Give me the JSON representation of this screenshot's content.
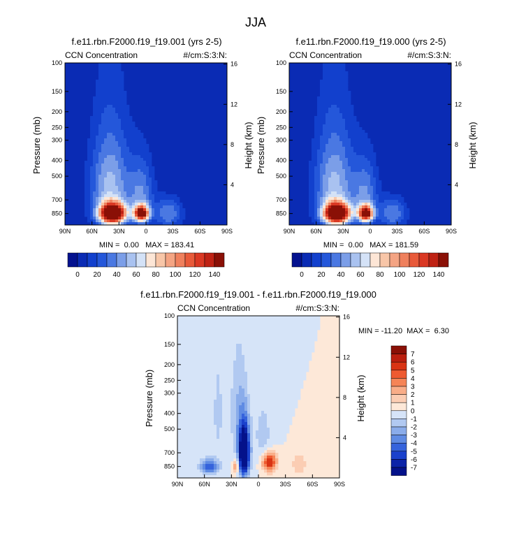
{
  "figure": {
    "title": "JJA"
  },
  "colorbar_levels": [
    "0",
    "20",
    "40",
    "60",
    "80",
    "100",
    "120",
    "140"
  ],
  "diff_colorbar_levels": [
    "7",
    "6",
    "5",
    "4",
    "3",
    "2",
    "1",
    "0",
    "-1",
    "-2",
    "-3",
    "-4",
    "-5",
    "-6",
    "-7"
  ],
  "colors": {
    "seq": [
      "#04128f",
      "#0a2bb4",
      "#1240cd",
      "#2457da",
      "#4a78e2",
      "#7b9ee8",
      "#a9c2f0",
      "#d4e2f7",
      "#fde6d6",
      "#f8c6a8",
      "#f4a483",
      "#ef805d",
      "#e85a3a",
      "#da3823",
      "#bf2214",
      "#8a1006"
    ],
    "diff": [
      "#8a1006",
      "#bb1f0f",
      "#d93414",
      "#ee5a30",
      "#f58456",
      "#f9ad88",
      "#fbcdb3",
      "#fde8d8",
      "#d6e4f8",
      "#b1c9f1",
      "#8aacea",
      "#5f8be3",
      "#3563dc",
      "#1a41cc",
      "#0c24a8",
      "#04128a"
    ],
    "frame_bg": "#0a2bb4",
    "diff_bg": "#fde8d8"
  },
  "panels": [
    {
      "title": "f.e11.rbn.F2000.f19_f19.001 (yrs 2-5)",
      "left_label": "CCN Concentration",
      "right_label": "#/cm:S:3:N:",
      "ylabel": "Pressure (mb)",
      "y2label": "Height (km)",
      "stats": "MIN =  0.00   MAX = 183.41"
    },
    {
      "title": "f.e11.rbn.F2000.f19_f19.000 (yrs 2-5)",
      "left_label": "CCN Concentration",
      "right_label": "#/cm:S:3:N:",
      "ylabel": "Pressure (mb)",
      "y2label": "Height (km)",
      "stats": "MIN =  0.00   MAX = 181.59"
    },
    {
      "title": "f.e11.rbn.F2000.f19_f19.001 - f.e11.rbn.F2000.f19_f19.000",
      "left_label": "CCN Concentration",
      "right_label": "#/cm:S:3:N:",
      "ylabel": "Pressure (mb)",
      "y2label": "Height (km)",
      "stats": "MIN = -11.20  MAX =  6.30"
    }
  ],
  "chart_data": [
    {
      "type": "heatmap",
      "title": "f.e11.rbn.F2000.f19_f19.001 (yrs 2-5)",
      "field": "CCN Concentration",
      "units": "#/cm:S:3:N:",
      "xlabel": "",
      "ylabel": "Pressure (mb)",
      "y2label": "Height (km)",
      "x_ticks": [
        "90N",
        "60N",
        "30N",
        "0",
        "30S",
        "60S",
        "90S"
      ],
      "y_ticks": [
        "100",
        "150",
        "200",
        "250",
        "300",
        "400",
        "500",
        "700",
        "850"
      ],
      "y2_ticks": [
        "16",
        "12",
        "8",
        "4"
      ],
      "xlim": [
        90,
        -90
      ],
      "ylim": [
        1000,
        100
      ],
      "min": 0.0,
      "max": 183.41,
      "contour_levels": [
        0,
        10,
        20,
        30,
        40,
        50,
        60,
        70,
        80,
        90,
        100,
        110,
        120,
        130,
        140
      ],
      "features": [
        {
          "lat": 37,
          "pressure": 850,
          "peak": 183.41,
          "lat_halfwidth": 14,
          "depth_mb": 120
        },
        {
          "lat": 5,
          "pressure": 850,
          "peak": 150,
          "lat_halfwidth": 8,
          "depth_mb": 95
        },
        {
          "lat": 40,
          "pressure": 600,
          "peak": 55,
          "lat_halfwidth": 22,
          "depth_mb": 420
        },
        {
          "lat": 5,
          "pressure": 650,
          "peak": 38,
          "lat_halfwidth": 14,
          "depth_mb": 300
        },
        {
          "lat": -25,
          "pressure": 850,
          "peak": 40,
          "lat_halfwidth": 15,
          "depth_mb": 180
        }
      ]
    },
    {
      "type": "heatmap",
      "title": "f.e11.rbn.F2000.f19_f19.000 (yrs 2-5)",
      "field": "CCN Concentration",
      "units": "#/cm:S:3:N:",
      "xlabel": "",
      "ylabel": "Pressure (mb)",
      "y2label": "Height (km)",
      "x_ticks": [
        "90N",
        "60N",
        "30N",
        "0",
        "30S",
        "60S",
        "90S"
      ],
      "y_ticks": [
        "100",
        "150",
        "200",
        "250",
        "300",
        "400",
        "500",
        "700",
        "850"
      ],
      "y2_ticks": [
        "16",
        "12",
        "8",
        "4"
      ],
      "xlim": [
        90,
        -90
      ],
      "ylim": [
        1000,
        100
      ],
      "min": 0.0,
      "max": 181.59,
      "contour_levels": [
        0,
        10,
        20,
        30,
        40,
        50,
        60,
        70,
        80,
        90,
        100,
        110,
        120,
        130,
        140
      ],
      "features": [
        {
          "lat": 37,
          "pressure": 850,
          "peak": 181.59,
          "lat_halfwidth": 14,
          "depth_mb": 120
        },
        {
          "lat": 5,
          "pressure": 850,
          "peak": 148,
          "lat_halfwidth": 8,
          "depth_mb": 95
        },
        {
          "lat": 40,
          "pressure": 600,
          "peak": 55,
          "lat_halfwidth": 22,
          "depth_mb": 420
        },
        {
          "lat": 5,
          "pressure": 650,
          "peak": 38,
          "lat_halfwidth": 14,
          "depth_mb": 300
        },
        {
          "lat": -25,
          "pressure": 850,
          "peak": 40,
          "lat_halfwidth": 15,
          "depth_mb": 180
        }
      ]
    },
    {
      "type": "heatmap",
      "title": "f.e11.rbn.F2000.f19_f19.001 - f.e11.rbn.F2000.f19_f19.000",
      "field": "CCN Concentration",
      "units": "#/cm:S:3:N:",
      "xlabel": "",
      "ylabel": "Pressure (mb)",
      "y2label": "Height (km)",
      "x_ticks": [
        "90N",
        "60N",
        "30N",
        "0",
        "30S",
        "60S",
        "90S"
      ],
      "y_ticks": [
        "100",
        "150",
        "200",
        "250",
        "300",
        "400",
        "500",
        "700",
        "850"
      ],
      "y2_ticks": [
        "16",
        "12",
        "8",
        "4"
      ],
      "xlim": [
        90,
        -90
      ],
      "ylim": [
        1000,
        100
      ],
      "min": -11.2,
      "max": 6.3,
      "contour_levels": [
        -7,
        -6,
        -5,
        -4,
        -3,
        -2,
        -1,
        0,
        1,
        2,
        3,
        4,
        5,
        6,
        7
      ],
      "features": [
        {
          "lat": 16,
          "pressure": 700,
          "peak": -11.2,
          "lat_halfwidth": 6,
          "depth_mb": 250
        },
        {
          "lat": 22,
          "pressure": 400,
          "peak": -2,
          "lat_halfwidth": 10,
          "depth_mb": 300
        },
        {
          "lat": 45,
          "pressure": 400,
          "peak": -1.2,
          "lat_halfwidth": 8,
          "depth_mb": 380
        },
        {
          "lat": 55,
          "pressure": 850,
          "peak": -5,
          "lat_halfwidth": 10,
          "depth_mb": 90
        },
        {
          "lat": -12,
          "pressure": 800,
          "peak": 6.3,
          "lat_halfwidth": 8,
          "depth_mb": 110
        },
        {
          "lat": 25,
          "pressure": 850,
          "peak": 4,
          "lat_halfwidth": 3,
          "depth_mb": 90
        },
        {
          "lat": -45,
          "pressure": 820,
          "peak": 2,
          "lat_halfwidth": 8,
          "depth_mb": 120
        },
        {
          "lat": -5,
          "pressure": 550,
          "peak": -1.5,
          "lat_halfwidth": 10,
          "depth_mb": 250
        }
      ]
    }
  ]
}
